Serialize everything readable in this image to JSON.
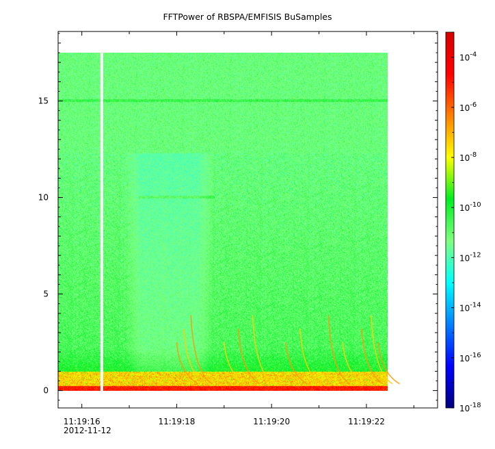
{
  "chart_data": {
    "type": "heatmap",
    "title": "FFTPower of RBSPA/EMFISIS  BuSamples",
    "xlabel": "",
    "ylabel": "",
    "x_start_label": "2012-11-12",
    "x_ticks": [
      {
        "value": 16,
        "label": "11:19:16"
      },
      {
        "value": 18,
        "label": "11:19:18"
      },
      {
        "value": 20,
        "label": "11:19:20"
      },
      {
        "value": 22,
        "label": "11:19:22"
      }
    ],
    "x_minor_ticks": [
      17,
      19,
      21,
      23
    ],
    "xlim": [
      15.5,
      23.5
    ],
    "y_ticks": [
      0,
      5,
      10,
      15
    ],
    "ylim": [
      -0.9,
      18.6
    ],
    "data_extent": {
      "x": [
        15.5,
        22.45
      ],
      "y": [
        0,
        17.5
      ]
    },
    "data_gap_x": 16.42,
    "colorbar": {
      "scale": "log",
      "range": [
        1e-18,
        0.001
      ],
      "tick_exponents": [
        -4,
        -6,
        -8,
        -10,
        -12,
        -14,
        -16,
        -18
      ],
      "tick_base": "10",
      "colormap": [
        "#00007f",
        "#0000ff",
        "#007fff",
        "#00ffff",
        "#7fff7f",
        "#00ee22",
        "#ffff00",
        "#ff7f00",
        "#ff0000",
        "#d40000"
      ]
    },
    "regions": [
      {
        "name": "lower band",
        "y": [
          0,
          12.3
        ],
        "typical_log_power": -10.5
      },
      {
        "name": "upper band",
        "y": [
          12.3,
          17.5
        ],
        "typical_log_power": -11.2
      },
      {
        "name": "quiet interval",
        "x": [
          16.9,
          18.8
        ],
        "y": [
          0.5,
          12.3
        ],
        "typical_log_power": -11.2
      },
      {
        "name": "low-frequency floor",
        "y": [
          0,
          1.0
        ],
        "typical_log_power": -7.5
      }
    ]
  }
}
